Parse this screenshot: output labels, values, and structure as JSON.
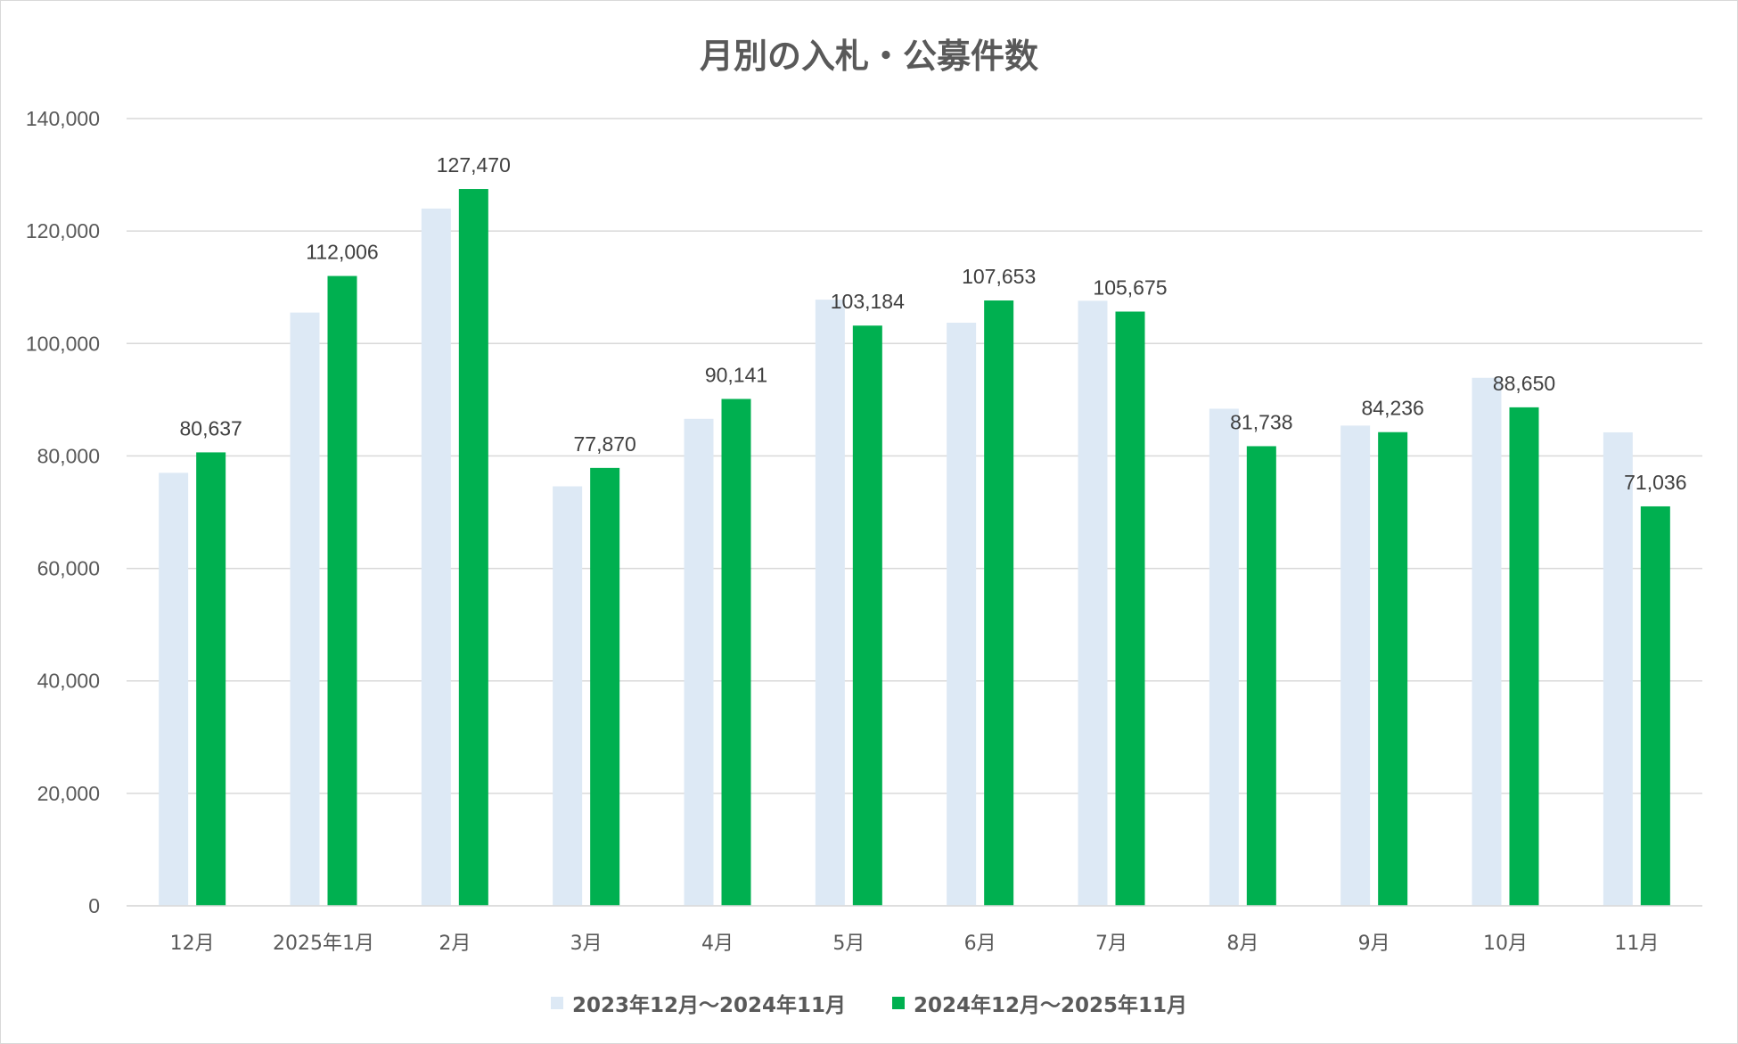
{
  "chart_data": {
    "type": "bar",
    "title": "月別の入札・公募件数",
    "categories": [
      "12月",
      "2025年1月",
      "2月",
      "3月",
      "4月",
      "5月",
      "6月",
      "7月",
      "8月",
      "9月",
      "10月",
      "11月"
    ],
    "series": [
      {
        "name": "2023年12月～2024年11月",
        "color": "#dde9f5",
        "values": [
          77000,
          105500,
          124000,
          74600,
          86600,
          107800,
          103700,
          107600,
          88400,
          85400,
          93900,
          84200
        ]
      },
      {
        "name": "2024年12月～2025年11月",
        "color": "#00b050",
        "values": [
          80637,
          112006,
          127470,
          77870,
          90141,
          103184,
          107653,
          105675,
          81738,
          84236,
          88650,
          71036
        ],
        "data_labels": [
          "80,637",
          "112,006",
          "127,470",
          "77,870",
          "90,141",
          "103,184",
          "107,653",
          "105,675",
          "81,738",
          "84,236",
          "88,650",
          "71,036"
        ]
      }
    ],
    "ylim": [
      0,
      140000
    ],
    "yticks": [
      "0",
      "20,000",
      "40,000",
      "60,000",
      "80,000",
      "100,000",
      "120,000",
      "140,000"
    ],
    "grid": true,
    "legend_position": "bottom"
  }
}
